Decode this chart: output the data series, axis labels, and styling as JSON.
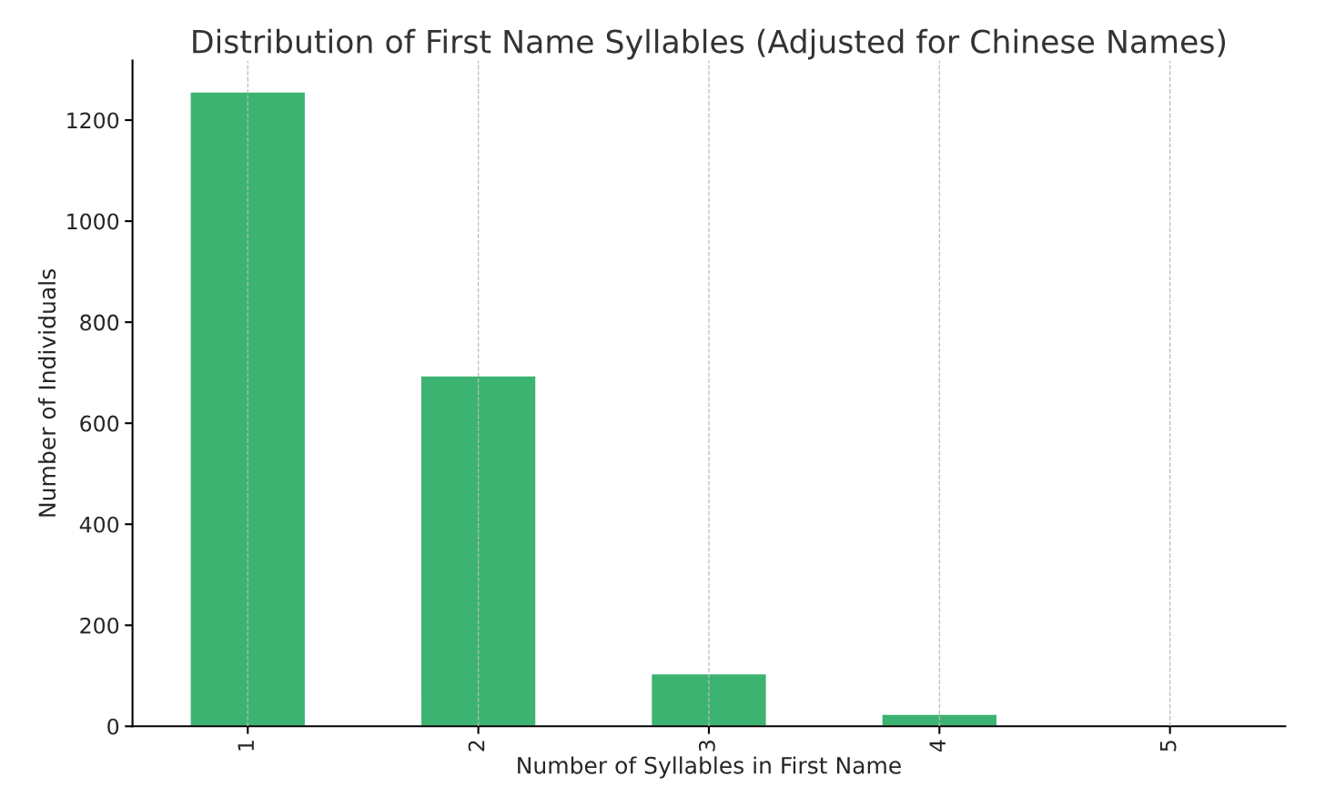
{
  "chart_data": {
    "type": "bar",
    "title": "Distribution of First Name Syllables (Adjusted for Chinese Names)",
    "xlabel": "Number of Syllables in First Name",
    "ylabel": "Number of Individuals",
    "categories": [
      "1",
      "2",
      "3",
      "4",
      "5"
    ],
    "values": [
      1256,
      694,
      104,
      24,
      null
    ],
    "color": "#3cb371",
    "ylim": [
      0,
      1318
    ],
    "yticks": [
      0,
      200,
      400,
      600,
      800,
      1000,
      1200
    ],
    "grid": "x"
  }
}
